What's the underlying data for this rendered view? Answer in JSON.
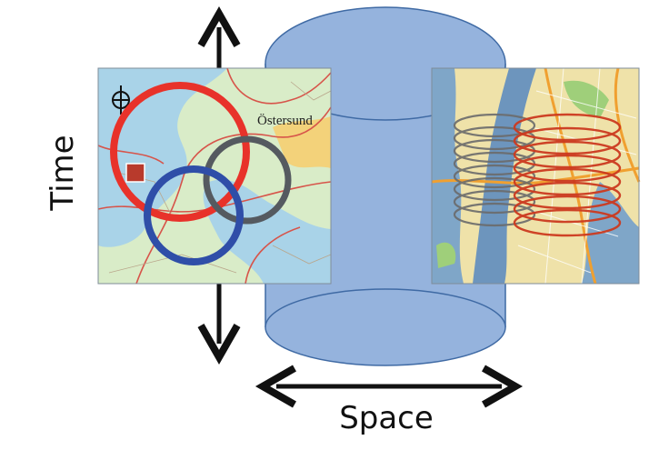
{
  "labels": {
    "time_axis": "Time",
    "space_axis": "Space",
    "map_city": "Östersund"
  },
  "colors": {
    "cylinder_fill": "#95b3dd",
    "cylinder_stroke": "#3f6aa4",
    "ring_red": "#e8322a",
    "ring_blue": "#2f4ea8",
    "ring_gray": "#555a60",
    "spiral_gray": "#6b6b6b",
    "spiral_red": "#cc3a1f",
    "arrow": "#111111"
  }
}
